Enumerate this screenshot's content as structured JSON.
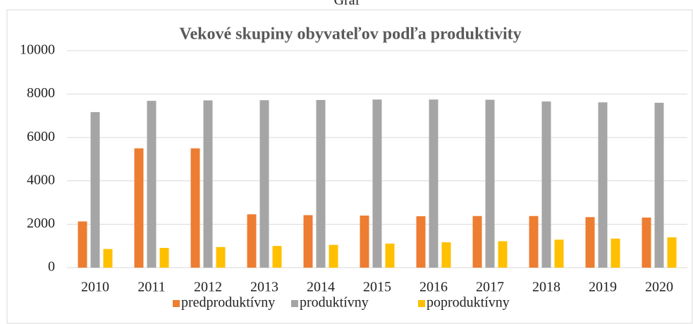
{
  "header": "Graf",
  "chart_data": {
    "type": "bar",
    "title": "Vekové skupiny obyvateľov podľa produktivity",
    "categories": [
      "2010",
      "2011",
      "2012",
      "2013",
      "2014",
      "2015",
      "2016",
      "2017",
      "2018",
      "2019",
      "2020"
    ],
    "series": [
      {
        "name": "predproduktívny",
        "color": "#ed7d31",
        "values": [
          2130,
          5500,
          5500,
          2460,
          2420,
          2400,
          2370,
          2380,
          2380,
          2330,
          2310
        ]
      },
      {
        "name": "produktívny",
        "color": "#a5a5a5",
        "values": [
          7170,
          7690,
          7710,
          7720,
          7730,
          7750,
          7750,
          7740,
          7660,
          7620,
          7600
        ]
      },
      {
        "name": "poproduktívny",
        "color": "#ffc000",
        "values": [
          860,
          910,
          950,
          1000,
          1050,
          1110,
          1170,
          1220,
          1290,
          1340,
          1400
        ]
      }
    ],
    "ylim": [
      0,
      10000
    ],
    "yticks": [
      0,
      2000,
      4000,
      6000,
      8000,
      10000
    ],
    "grid": true,
    "legend": "bottom"
  }
}
